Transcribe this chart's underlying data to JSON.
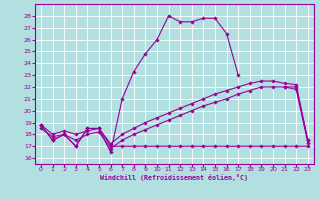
{
  "color": "#990099",
  "bg_color": "#b2dfdf",
  "grid_color": "#ffffff",
  "xlim": [
    -0.5,
    23.5
  ],
  "ylim": [
    15.5,
    29.0
  ],
  "yticks": [
    16,
    17,
    18,
    19,
    20,
    21,
    22,
    23,
    24,
    25,
    26,
    27,
    28
  ],
  "xticks": [
    0,
    1,
    2,
    3,
    4,
    5,
    6,
    7,
    8,
    9,
    10,
    11,
    12,
    13,
    14,
    15,
    16,
    17,
    18,
    19,
    20,
    21,
    22,
    23
  ],
  "xlabel": "Windchill (Refroidissement éolien,°C)",
  "x": [
    0,
    1,
    2,
    3,
    4,
    5,
    6,
    7,
    8,
    9,
    10,
    11,
    12,
    13,
    14,
    15,
    16,
    17,
    18,
    19,
    20,
    21,
    22,
    23
  ],
  "y_main": [
    18.8,
    17.5,
    18.0,
    17.0,
    18.5,
    18.5,
    16.5,
    21.0,
    23.3,
    24.8,
    26.0,
    28.0,
    27.5,
    27.5,
    27.8,
    27.8,
    26.5,
    23.0,
    null,
    null,
    null,
    22.0,
    22.0,
    17.5
  ],
  "y_rise1": [
    18.8,
    18.0,
    18.3,
    18.0,
    18.3,
    18.5,
    17.2,
    18.0,
    18.5,
    19.0,
    19.4,
    19.8,
    20.2,
    20.6,
    21.0,
    21.4,
    21.7,
    22.0,
    22.3,
    22.5,
    22.5,
    22.3,
    22.2,
    17.5
  ],
  "y_rise2": [
    18.5,
    17.8,
    18.0,
    17.5,
    18.0,
    18.2,
    16.8,
    17.5,
    18.0,
    18.4,
    18.8,
    19.2,
    19.6,
    20.0,
    20.4,
    20.7,
    21.0,
    21.4,
    21.7,
    22.0,
    22.0,
    22.0,
    21.8,
    17.3
  ],
  "y_flat_x": [
    0,
    1,
    2,
    3,
    4,
    5,
    6,
    7,
    8,
    9,
    10,
    11,
    12,
    13,
    14,
    15,
    16,
    17,
    18,
    19,
    20,
    21,
    22,
    23
  ],
  "y_flat": [
    18.8,
    17.5,
    18.0,
    17.0,
    18.5,
    18.5,
    17.0,
    17.0,
    17.0,
    17.0,
    17.0,
    17.0,
    17.0,
    17.0,
    17.0,
    17.0,
    17.0,
    17.0,
    17.0,
    17.0,
    17.0,
    17.0,
    17.0,
    17.0
  ]
}
